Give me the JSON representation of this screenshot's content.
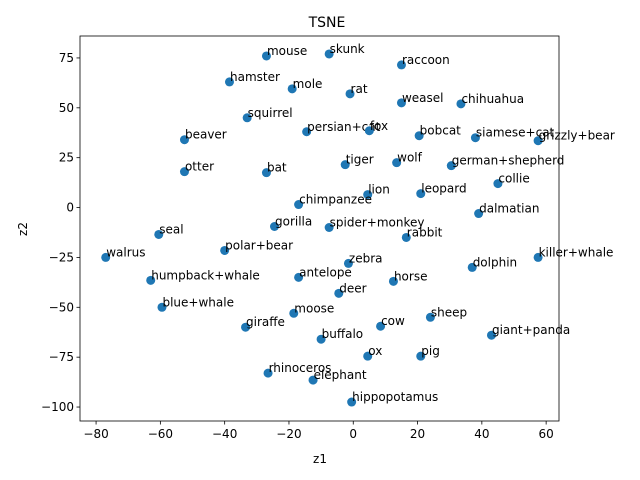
{
  "chart_data": {
    "type": "scatter",
    "title": "TSNE",
    "xlabel": "z1",
    "ylabel": "z2",
    "xlim": [
      -85,
      64
    ],
    "ylim": [
      -107,
      86
    ],
    "xticks": [
      -80,
      -60,
      -40,
      -20,
      0,
      20,
      40,
      60
    ],
    "yticks": [
      75,
      50,
      25,
      0,
      -25,
      -50,
      -75,
      -100
    ],
    "xtick_labels": [
      "−80",
      "−60",
      "−40",
      "−20",
      "0",
      "20",
      "40",
      "60"
    ],
    "ytick_labels": [
      "75",
      "50",
      "25",
      "0",
      "−25",
      "−50",
      "−75",
      "−100"
    ],
    "grid": false,
    "marker_color": "#1f77b4",
    "points": [
      {
        "label": "mouse",
        "x": -27,
        "y": 76
      },
      {
        "label": "skunk",
        "x": -7.5,
        "y": 77
      },
      {
        "label": "raccoon",
        "x": 15,
        "y": 71.5
      },
      {
        "label": "hamster",
        "x": -38.5,
        "y": 63
      },
      {
        "label": "mole",
        "x": -19,
        "y": 59.5
      },
      {
        "label": "rat",
        "x": -1,
        "y": 57
      },
      {
        "label": "weasel",
        "x": 15,
        "y": 52.5
      },
      {
        "label": "chihuahua",
        "x": 33.5,
        "y": 52
      },
      {
        "label": "squirrel",
        "x": -33,
        "y": 45
      },
      {
        "label": "persian+cat",
        "x": -14.5,
        "y": 38
      },
      {
        "label": "fox",
        "x": 5,
        "y": 38.5
      },
      {
        "label": "bobcat",
        "x": 20.5,
        "y": 36
      },
      {
        "label": "siamese+cat",
        "x": 38,
        "y": 35
      },
      {
        "label": "grizzly+bear",
        "x": 57.5,
        "y": 33.5
      },
      {
        "label": "beaver",
        "x": -52.5,
        "y": 34
      },
      {
        "label": "tiger",
        "x": -2.5,
        "y": 21.5
      },
      {
        "label": "wolf",
        "x": 13.5,
        "y": 22.5
      },
      {
        "label": "german+shepherd",
        "x": 30.5,
        "y": 21
      },
      {
        "label": "otter",
        "x": -52.5,
        "y": 18
      },
      {
        "label": "bat",
        "x": -27,
        "y": 17.5
      },
      {
        "label": "collie",
        "x": 45,
        "y": 12
      },
      {
        "label": "lion",
        "x": 4.5,
        "y": 6.5
      },
      {
        "label": "leopard",
        "x": 21,
        "y": 7
      },
      {
        "label": "chimpanzee",
        "x": -17,
        "y": 1.5
      },
      {
        "label": "dalmatian",
        "x": 39,
        "y": -3
      },
      {
        "label": "gorilla",
        "x": -24.5,
        "y": -9.5
      },
      {
        "label": "spider+monkey",
        "x": -7.5,
        "y": -10
      },
      {
        "label": "seal",
        "x": -60.5,
        "y": -13.5
      },
      {
        "label": "rabbit",
        "x": 16.5,
        "y": -15
      },
      {
        "label": "polar+bear",
        "x": -40,
        "y": -21.5
      },
      {
        "label": "walrus",
        "x": -77,
        "y": -25
      },
      {
        "label": "killer+whale",
        "x": 57.5,
        "y": -25
      },
      {
        "label": "zebra",
        "x": -1.5,
        "y": -28
      },
      {
        "label": "dolphin",
        "x": 37,
        "y": -30
      },
      {
        "label": "antelope",
        "x": -17,
        "y": -35
      },
      {
        "label": "humpback+whale",
        "x": -63,
        "y": -36.5
      },
      {
        "label": "horse",
        "x": 12.5,
        "y": -37
      },
      {
        "label": "deer",
        "x": -4.5,
        "y": -43
      },
      {
        "label": "blue+whale",
        "x": -59.5,
        "y": -50
      },
      {
        "label": "moose",
        "x": -18.5,
        "y": -53
      },
      {
        "label": "sheep",
        "x": 24,
        "y": -55
      },
      {
        "label": "giraffe",
        "x": -33.5,
        "y": -60
      },
      {
        "label": "cow",
        "x": 8.5,
        "y": -59.5
      },
      {
        "label": "giant+panda",
        "x": 43,
        "y": -64
      },
      {
        "label": "buffalo",
        "x": -10,
        "y": -66
      },
      {
        "label": "ox",
        "x": 4.5,
        "y": -74.5
      },
      {
        "label": "pig",
        "x": 21,
        "y": -74.5
      },
      {
        "label": "rhinoceros",
        "x": -26.5,
        "y": -83
      },
      {
        "label": "elephant",
        "x": -12.5,
        "y": -86.5
      },
      {
        "label": "hippopotamus",
        "x": -0.5,
        "y": -97.5
      }
    ]
  }
}
